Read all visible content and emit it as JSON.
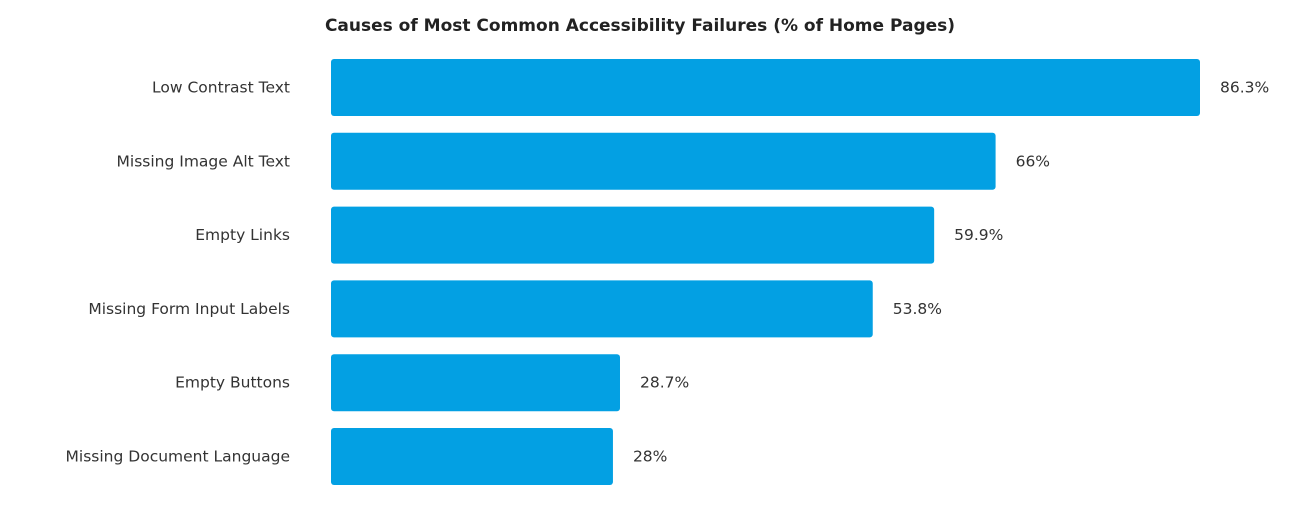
{
  "chart_data": {
    "type": "bar",
    "orientation": "horizontal",
    "title": "Causes of Most Common Accessibility Failures (% of Home Pages)",
    "categories": [
      "Low Contrast Text",
      "Missing Image Alt Text",
      "Empty Links",
      "Missing Form Input Labels",
      "Empty Buttons",
      "Missing Document Language"
    ],
    "values": [
      86.3,
      66,
      59.9,
      53.8,
      28.7,
      28
    ],
    "value_labels": [
      "86.3%",
      "66%",
      "59.9%",
      "53.8%",
      "28.7%",
      "28%"
    ],
    "xlim": [
      0,
      86.3
    ],
    "bar_color": "#03a0e3",
    "grid": false,
    "legend": "none"
  }
}
